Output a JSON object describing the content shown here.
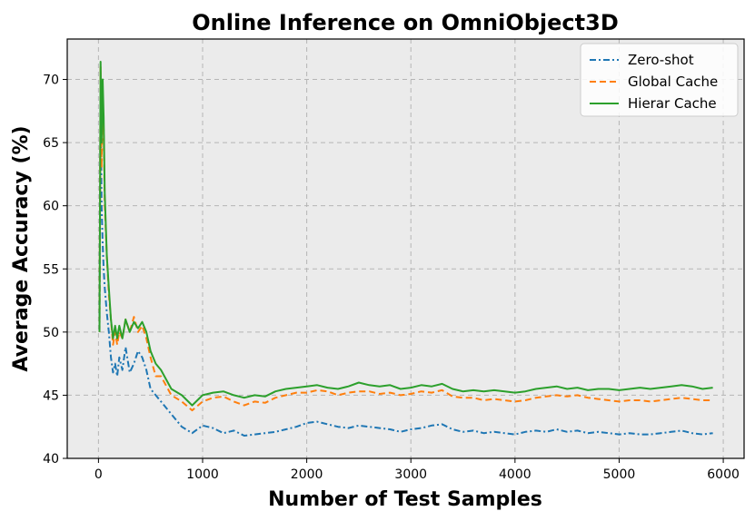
{
  "chart_data": {
    "type": "line",
    "title": "Online Inference on OmniObject3D",
    "xlabel": "Number of Test Samples",
    "ylabel": "Average Accuracy (%)",
    "xlim": [
      -300,
      6200
    ],
    "ylim": [
      40,
      73.2
    ],
    "xticks": [
      0,
      1000,
      2000,
      3000,
      4000,
      5000,
      6000
    ],
    "yticks": [
      40,
      45,
      50,
      55,
      60,
      65,
      70
    ],
    "grid": true,
    "legend_position": "top-right",
    "series": [
      {
        "name": "Zero-shot",
        "color": "#1f77b4",
        "dash": "dashdot",
        "x": [
          10,
          20,
          30,
          40,
          50,
          60,
          80,
          100,
          120,
          140,
          160,
          180,
          200,
          230,
          260,
          300,
          340,
          380,
          420,
          460,
          500,
          550,
          600,
          700,
          800,
          900,
          1000,
          1100,
          1200,
          1300,
          1400,
          1500,
          1600,
          1700,
          1800,
          1900,
          2000,
          2100,
          2200,
          2300,
          2400,
          2500,
          2600,
          2700,
          2800,
          2900,
          3000,
          3100,
          3200,
          3300,
          3400,
          3500,
          3600,
          3700,
          3800,
          3900,
          4000,
          4100,
          4200,
          4300,
          4400,
          4500,
          4600,
          4700,
          4800,
          4900,
          5000,
          5100,
          5200,
          5300,
          5400,
          5500,
          5600,
          5700,
          5800,
          5900
        ],
        "y": [
          50.0,
          68.5,
          60.0,
          57.0,
          55.0,
          53.5,
          51.5,
          50.0,
          48.0,
          46.8,
          47.5,
          46.5,
          48.0,
          47.0,
          48.8,
          46.8,
          47.5,
          48.5,
          48.0,
          47.0,
          45.5,
          45.0,
          44.5,
          43.5,
          42.5,
          42.0,
          42.6,
          42.4,
          42.0,
          42.2,
          41.8,
          41.9,
          42.0,
          42.1,
          42.3,
          42.5,
          42.8,
          42.9,
          42.7,
          42.5,
          42.4,
          42.6,
          42.5,
          42.4,
          42.3,
          42.1,
          42.3,
          42.4,
          42.6,
          42.7,
          42.3,
          42.1,
          42.2,
          42.0,
          42.1,
          42.0,
          41.9,
          42.1,
          42.2,
          42.1,
          42.3,
          42.1,
          42.2,
          42.0,
          42.1,
          42.0,
          41.9,
          42.0,
          41.9,
          41.9,
          42.0,
          42.1,
          42.2,
          42.0,
          41.9,
          42.0
        ]
      },
      {
        "name": "Global Cache",
        "color": "#ff7f0e",
        "dash": "dashed",
        "x": [
          10,
          20,
          30,
          40,
          50,
          60,
          80,
          100,
          120,
          140,
          160,
          180,
          200,
          230,
          260,
          300,
          340,
          380,
          420,
          460,
          500,
          550,
          600,
          700,
          800,
          900,
          1000,
          1100,
          1200,
          1300,
          1400,
          1500,
          1600,
          1700,
          1800,
          1900,
          2000,
          2100,
          2200,
          2300,
          2400,
          2500,
          2600,
          2700,
          2800,
          2900,
          3000,
          3100,
          3200,
          3300,
          3400,
          3500,
          3600,
          3700,
          3800,
          3900,
          4000,
          4100,
          4200,
          4300,
          4400,
          4500,
          4600,
          4700,
          4800,
          4900,
          5000,
          5100,
          5200,
          5300,
          5400,
          5500,
          5600,
          5700,
          5800,
          5900
        ],
        "y": [
          50.0,
          71.0,
          63.0,
          68.0,
          66.0,
          60.0,
          56.0,
          53.0,
          51.0,
          49.0,
          50.0,
          49.0,
          50.0,
          49.5,
          51.0,
          50.0,
          51.2,
          50.0,
          50.5,
          49.5,
          48.0,
          46.5,
          46.5,
          45.0,
          44.5,
          43.8,
          44.5,
          44.8,
          44.9,
          44.5,
          44.2,
          44.5,
          44.4,
          44.8,
          45.0,
          45.2,
          45.2,
          45.4,
          45.3,
          45.0,
          45.2,
          45.3,
          45.3,
          45.1,
          45.2,
          45.0,
          45.1,
          45.3,
          45.2,
          45.4,
          44.9,
          44.8,
          44.8,
          44.6,
          44.7,
          44.6,
          44.5,
          44.6,
          44.8,
          44.9,
          45.0,
          44.9,
          45.0,
          44.8,
          44.7,
          44.6,
          44.5,
          44.6,
          44.6,
          44.5,
          44.6,
          44.7,
          44.8,
          44.7,
          44.6,
          44.6
        ]
      },
      {
        "name": "Hierar Cache",
        "color": "#2ca02c",
        "dash": "solid",
        "x": [
          10,
          20,
          30,
          40,
          50,
          60,
          80,
          100,
          120,
          140,
          160,
          180,
          200,
          230,
          260,
          300,
          340,
          380,
          420,
          460,
          500,
          550,
          600,
          700,
          800,
          900,
          1000,
          1100,
          1200,
          1300,
          1400,
          1500,
          1600,
          1700,
          1800,
          1900,
          2000,
          2100,
          2200,
          2300,
          2400,
          2500,
          2600,
          2700,
          2800,
          2900,
          3000,
          3100,
          3200,
          3300,
          3400,
          3500,
          3600,
          3700,
          3800,
          3900,
          4000,
          4100,
          4200,
          4300,
          4400,
          4500,
          4600,
          4700,
          4800,
          4900,
          5000,
          5100,
          5200,
          5300,
          5400,
          5500,
          5600,
          5700,
          5800,
          5900
        ],
        "y": [
          50.0,
          71.4,
          65.0,
          70.0,
          67.0,
          61.0,
          56.0,
          53.5,
          51.0,
          49.5,
          50.5,
          49.5,
          50.5,
          49.5,
          51.0,
          50.0,
          50.8,
          50.3,
          50.8,
          50.0,
          48.5,
          47.5,
          47.0,
          45.5,
          45.0,
          44.2,
          45.0,
          45.2,
          45.3,
          45.0,
          44.8,
          45.0,
          44.9,
          45.3,
          45.5,
          45.6,
          45.7,
          45.8,
          45.6,
          45.5,
          45.7,
          46.0,
          45.8,
          45.7,
          45.8,
          45.5,
          45.6,
          45.8,
          45.7,
          45.9,
          45.5,
          45.3,
          45.4,
          45.3,
          45.4,
          45.3,
          45.2,
          45.3,
          45.5,
          45.6,
          45.7,
          45.5,
          45.6,
          45.4,
          45.5,
          45.5,
          45.4,
          45.5,
          45.6,
          45.5,
          45.6,
          45.7,
          45.8,
          45.7,
          45.5,
          45.6
        ]
      }
    ]
  }
}
